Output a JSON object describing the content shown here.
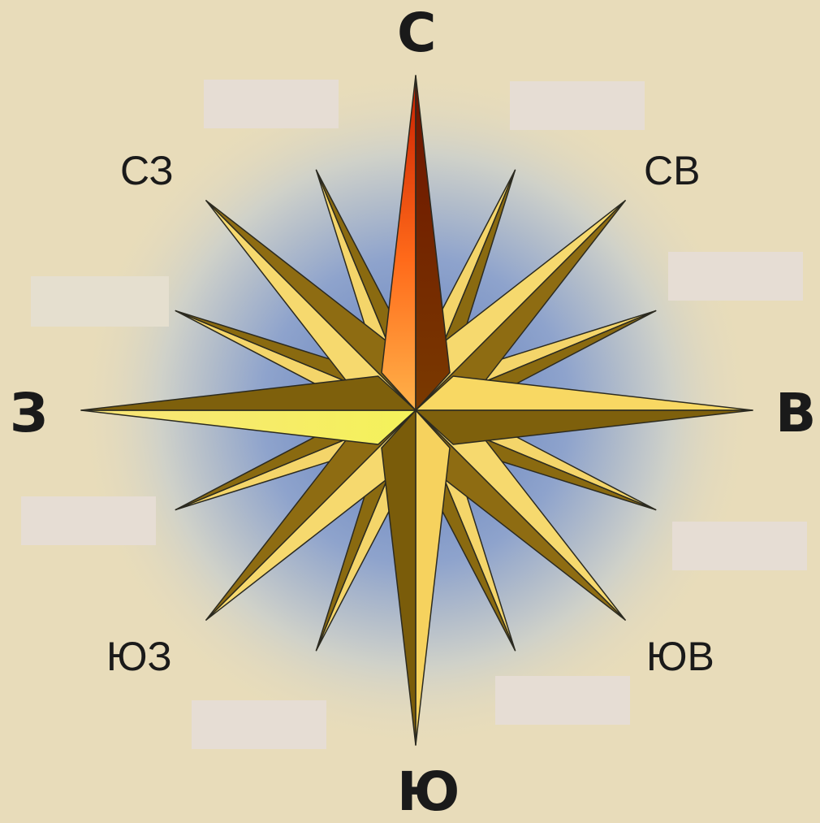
{
  "compass": {
    "north": "С",
    "south": "Ю",
    "west": "З",
    "east": "В",
    "northwest": "СЗ",
    "northeast": "СВ",
    "southwest": "ЮЗ",
    "southeast": "ЮВ"
  },
  "blank_boxes": [
    {
      "id": "nnw",
      "value": ""
    },
    {
      "id": "nne",
      "value": ""
    },
    {
      "id": "ene",
      "value": ""
    },
    {
      "id": "wnw",
      "value": ""
    },
    {
      "id": "wsw",
      "value": ""
    },
    {
      "id": "ese",
      "value": ""
    },
    {
      "id": "ssw",
      "value": ""
    },
    {
      "id": "sse",
      "value": ""
    }
  ],
  "colors": {
    "background": "#e8dcba",
    "halo_inner": "#7b92c4",
    "point_light": "#f4d36b",
    "point_dark": "#8a6a10",
    "north_light": "#ff6a1a",
    "north_dark": "#6e1a00",
    "west_highlight": "#f4f25a",
    "blank_box": "#e6ddd4"
  }
}
